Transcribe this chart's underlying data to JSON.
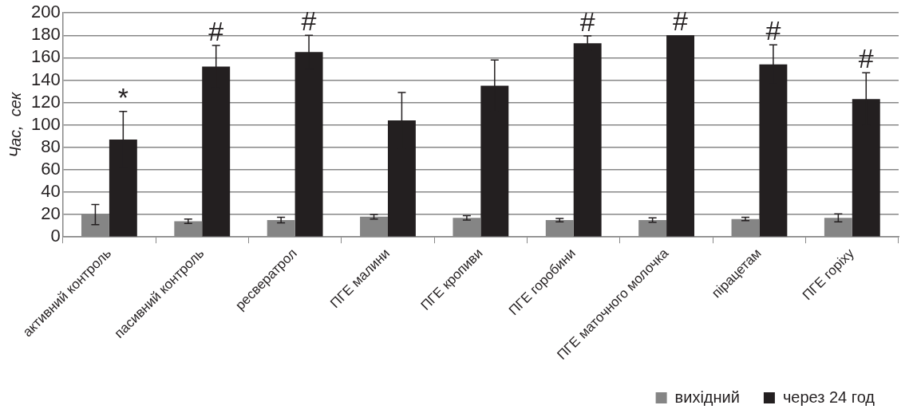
{
  "chart_data": {
    "type": "bar",
    "ylabel": "Час,  сек",
    "categories": [
      "активний контроль",
      "пасивний контроль",
      "ресвератрол",
      "ПГЕ малини",
      "ПГЕ кропиви",
      "ПГЕ горобини",
      "ПГЕ маточного молочка",
      "пірацетам",
      "ПГЕ горіху"
    ],
    "series": [
      {
        "name": "вихідний",
        "color": "#858585",
        "values": [
          20,
          14,
          15,
          18,
          17,
          15,
          15,
          16,
          17
        ],
        "errors": [
          9,
          2,
          2.5,
          2,
          2,
          1.5,
          2,
          1.5,
          3.5
        ]
      },
      {
        "name": "через 24 год",
        "color": "#231f20",
        "values": [
          87,
          152,
          165,
          104,
          135,
          173,
          180,
          154,
          123
        ],
        "errors": [
          25,
          19,
          15,
          25,
          23,
          6.5,
          null,
          17.5,
          23.5
        ],
        "value_labels": [
          "*",
          "#",
          "#",
          null,
          null,
          "#",
          "#",
          "#",
          "#"
        ]
      }
    ],
    "ylim": [
      0,
      200
    ],
    "yticks": [
      0,
      20,
      40,
      60,
      80,
      100,
      120,
      140,
      160,
      180,
      200
    ],
    "grid": "y",
    "legend": "bottom right"
  }
}
